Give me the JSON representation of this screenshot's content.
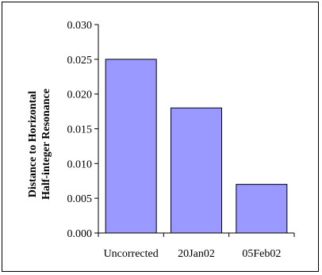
{
  "chart_data": {
    "type": "bar",
    "title": "",
    "xlabel": "",
    "ylabel": [
      "Distance to Horizontal",
      "Half-integer Resonance"
    ],
    "categories": [
      "Uncorrected",
      "20Jan02",
      "05Feb02"
    ],
    "values": [
      0.025,
      0.018,
      0.007
    ],
    "ylim": [
      0,
      0.03
    ],
    "yticks": [
      "0.000",
      "0.005",
      "0.010",
      "0.015",
      "0.020",
      "0.025",
      "0.030"
    ],
    "grid": false,
    "legend": "none",
    "colors": {
      "bar_fill": "#9999ff",
      "bar_stroke": "#000000",
      "axis": "#000000"
    }
  }
}
